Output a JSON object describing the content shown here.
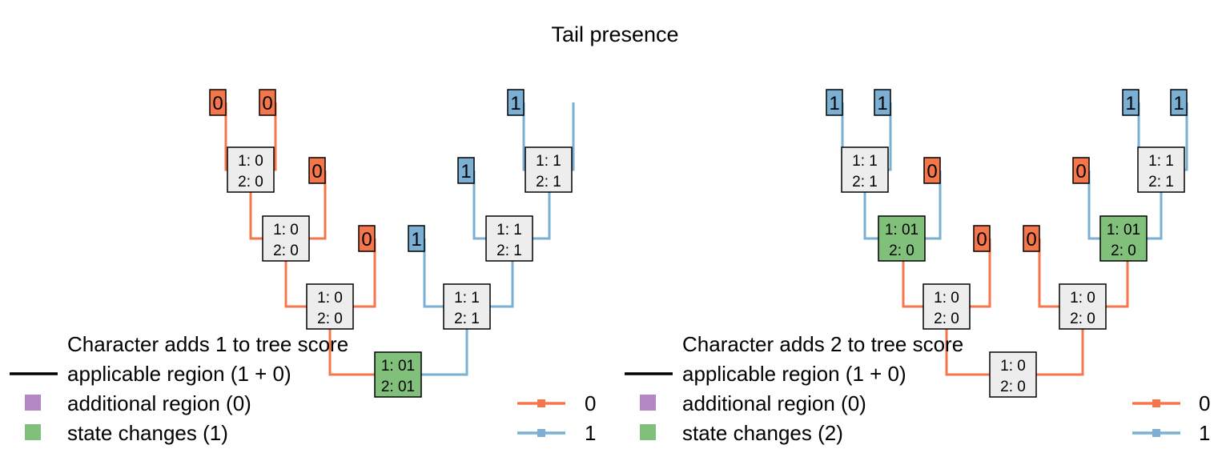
{
  "title": "Tail presence",
  "colors": {
    "state0": "#F4764A",
    "state1": "#7BAFD4",
    "changed": "#81C07A",
    "node": "#EDEDED",
    "additional": "#B288C4"
  },
  "panels": [
    {
      "score_label": "Character adds 1 to tree score",
      "applicable_label": "applicable region (1 + 0)",
      "additional_label": "additional region (0)",
      "changes_label": "state changes (1)",
      "legend": [
        "0",
        "1"
      ],
      "tips": [
        "0",
        "0",
        "0",
        "0",
        "1",
        "1",
        "1"
      ],
      "nodes": [
        {
          "l1": "1: 0",
          "l2": "2: 0",
          "changed": false
        },
        {
          "l1": "1: 0",
          "l2": "2: 0",
          "changed": false
        },
        {
          "l1": "1: 0",
          "l2": "2: 0",
          "changed": false
        },
        {
          "l1": "1: 01",
          "l2": "2: 01",
          "changed": true
        },
        {
          "l1": "1: 1",
          "l2": "2: 1",
          "changed": false
        },
        {
          "l1": "1: 1",
          "l2": "2: 1",
          "changed": false
        },
        {
          "l1": "1: 1",
          "l2": "2: 1",
          "changed": false
        }
      ]
    },
    {
      "score_label": "Character adds 2 to tree score",
      "applicable_label": "applicable region (1 + 0)",
      "additional_label": "additional region (0)",
      "changes_label": "state changes (2)",
      "legend": [
        "0",
        "1"
      ],
      "tips": [
        "1",
        "1",
        "0",
        "0",
        "0",
        "0",
        "1",
        "1"
      ],
      "nodes": [
        {
          "l1": "1: 1",
          "l2": "2: 1",
          "changed": false
        },
        {
          "l1": "1: 01",
          "l2": "2: 0",
          "changed": true
        },
        {
          "l1": "1: 0",
          "l2": "2: 0",
          "changed": false
        },
        {
          "l1": "1: 0",
          "l2": "2: 0",
          "changed": false
        },
        {
          "l1": "1: 0",
          "l2": "2: 0",
          "changed": false
        },
        {
          "l1": "1: 01",
          "l2": "2: 0",
          "changed": true
        },
        {
          "l1": "1: 1",
          "l2": "2: 1",
          "changed": false
        }
      ]
    }
  ]
}
